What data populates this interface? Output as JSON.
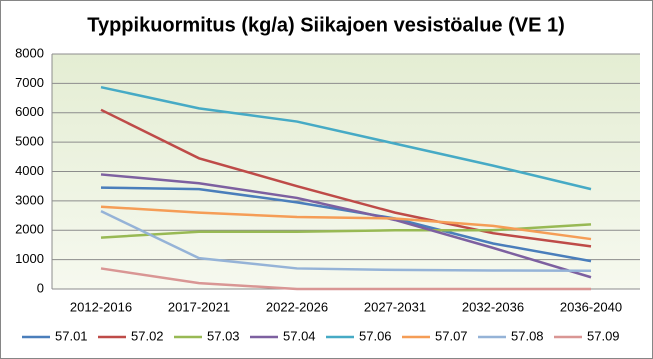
{
  "chart_data": {
    "type": "line",
    "title": "Typpikuormitus (kg/a) Siikajoen vesistöalue (VE 1)",
    "categories": [
      "2012-2016",
      "2017-2021",
      "2022-2026",
      "2027-2031",
      "2032-2036",
      "2036-2040"
    ],
    "series": [
      {
        "name": "57.01",
        "color": "#4a7ebb",
        "values": [
          3450,
          3400,
          2950,
          2400,
          1550,
          950
        ]
      },
      {
        "name": "57.02",
        "color": "#be4b48",
        "values": [
          6100,
          4450,
          3500,
          2600,
          1900,
          1450
        ]
      },
      {
        "name": "57.03",
        "color": "#98b954",
        "values": [
          1750,
          1950,
          1950,
          2000,
          2000,
          2200
        ]
      },
      {
        "name": "57.04",
        "color": "#7d60a0",
        "values": [
          3900,
          3600,
          3100,
          2350,
          1400,
          400
        ]
      },
      {
        "name": "57.06",
        "color": "#46aac5",
        "values": [
          6870,
          6150,
          5700,
          4950,
          4200,
          3400
        ]
      },
      {
        "name": "57.07",
        "color": "#f59d56",
        "values": [
          2800,
          2600,
          2450,
          2400,
          2150,
          1700
        ]
      },
      {
        "name": "57.08",
        "color": "#95b3d7",
        "values": [
          2650,
          1050,
          700,
          650,
          630,
          620
        ]
      },
      {
        "name": "57.09",
        "color": "#d99694",
        "values": [
          700,
          200,
          0,
          0,
          0,
          0
        ]
      }
    ],
    "ylim": [
      0,
      8000
    ],
    "yticks": [
      0,
      1000,
      2000,
      3000,
      4000,
      5000,
      6000,
      7000,
      8000
    ],
    "grid": true
  }
}
